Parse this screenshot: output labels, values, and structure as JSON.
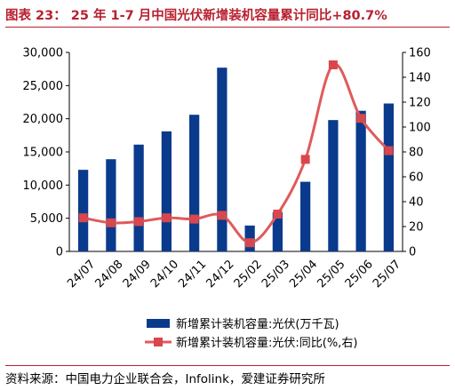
{
  "header": {
    "title": "图表 23： 25 年 1-7 月中国光伏新增装机容量累计同比+80.7%"
  },
  "footer": {
    "source": "资料来源：中国电力企业联合会，Infolink，爱建证券研究所"
  },
  "chart_data": {
    "type": "bar",
    "categories": [
      "24/07",
      "24/08",
      "24/09",
      "24/10",
      "24/11",
      "24/12",
      "25/02",
      "25/03",
      "25/04",
      "25/05",
      "25/06",
      "25/07"
    ],
    "series": [
      {
        "name": "新增累计装机容量:光伏(万千瓦)",
        "type": "bar",
        "axis": "left",
        "color": "#0a3a8c",
        "values": [
          12300,
          13900,
          16100,
          18100,
          20600,
          27700,
          3900,
          5900,
          10500,
          19800,
          21200,
          22300
        ]
      },
      {
        "name": "新增累计装机容量:光伏:同比(%,右)",
        "type": "line",
        "axis": "right",
        "color": "#e05a5a",
        "values": [
          27,
          23,
          24,
          27,
          26,
          29,
          7,
          30,
          74,
          150,
          107,
          81
        ]
      }
    ],
    "yleft": {
      "ylim": [
        0,
        30000
      ],
      "ticks": [
        "0",
        "5,000",
        "10,000",
        "15,000",
        "20,000",
        "25,000",
        "30,000"
      ]
    },
    "yright": {
      "ylim": [
        0,
        160
      ],
      "ticks": [
        "0",
        "20",
        "40",
        "60",
        "80",
        "100",
        "120",
        "140",
        "160"
      ]
    },
    "grid": false,
    "legend_position": "bottom"
  }
}
